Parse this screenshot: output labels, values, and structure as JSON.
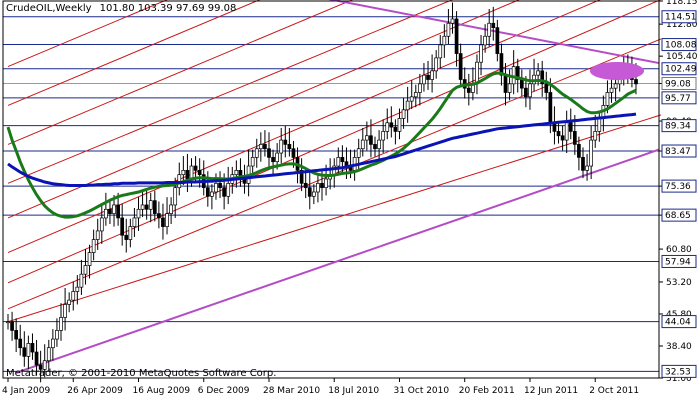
{
  "chart_data": {
    "type": "candlestick",
    "title": "CrudeOIL,Weekly",
    "ohlc_header": "101.80 103.39 97.69 99.08",
    "copyright": "Metatrader, © 2001-2010 MetaQuotes Software Corp.",
    "y_axis": {
      "ticks": [
        "118.15",
        "112.80",
        "105.40",
        "99.08",
        "90.40",
        "83.47",
        "75.36",
        "68.65",
        "60.80",
        "53.20",
        "45.80",
        "38.40",
        "31.00"
      ],
      "tick_values": [
        118.15,
        112.8,
        105.4,
        99.08,
        90.4,
        83.47,
        75.36,
        68.65,
        60.8,
        53.2,
        45.8,
        38.4,
        31.0
      ],
      "ylim": [
        31.0,
        118.15
      ]
    },
    "price_levels": [
      {
        "label": "114.51",
        "value": 114.51,
        "highlight": true
      },
      {
        "label": "108.08",
        "value": 108.08,
        "highlight": true
      },
      {
        "label": "102.49",
        "value": 102.49,
        "highlight": true
      },
      {
        "label": "99.08",
        "value": 99.08,
        "current": true
      },
      {
        "label": "95.77",
        "value": 95.77,
        "highlight": true
      },
      {
        "label": "89.34",
        "value": 89.34,
        "highlight": true
      },
      {
        "label": "83.47",
        "value": 83.47,
        "highlight": true
      },
      {
        "label": "75.36",
        "value": 75.36,
        "highlight": false
      },
      {
        "label": "68.65",
        "value": 68.65,
        "highlight": false
      },
      {
        "label": "57.94",
        "value": 57.94,
        "highlight": true
      },
      {
        "label": "44.04",
        "value": 44.04,
        "highlight": true
      },
      {
        "label": "32.53",
        "value": 32.53,
        "highlight": true
      }
    ],
    "x_axis": {
      "labels": [
        "4 Jan 2009",
        "26 Apr 2009",
        "16 Aug 2009",
        "6 Dec 2009",
        "28 Mar 2010",
        "18 Jul 2010",
        "31 Oct 2010",
        "20 Feb 2011",
        "12 Jun 2011",
        "2 Oct 2011"
      ],
      "label_index": [
        0,
        16,
        32,
        48,
        64,
        80,
        96,
        112,
        128,
        144
      ]
    },
    "weekly_close": [
      44,
      42,
      40,
      38,
      36,
      39,
      37,
      34,
      33,
      35,
      38,
      40,
      42,
      45,
      48,
      49,
      51,
      52,
      55,
      57,
      60,
      63,
      65,
      68,
      70,
      69,
      71,
      68,
      64,
      63,
      66,
      68,
      70,
      71,
      70,
      72,
      69,
      68,
      66,
      69,
      71,
      75,
      78,
      79,
      77,
      80,
      79,
      78,
      75,
      73,
      74,
      76,
      75,
      73,
      76,
      78,
      79,
      77,
      76,
      80,
      82,
      84,
      85,
      84,
      82,
      81,
      83,
      86,
      85,
      84,
      82,
      79,
      76,
      75,
      73,
      74,
      76,
      75,
      77,
      78,
      80,
      82,
      81,
      80,
      79,
      82,
      84,
      86,
      87,
      85,
      84,
      86,
      88,
      90,
      89,
      88,
      91,
      93,
      95,
      96,
      97,
      99,
      101,
      100,
      102,
      105,
      108,
      110,
      113,
      114,
      106,
      100,
      98,
      97,
      99,
      104,
      108,
      110,
      113,
      112,
      106,
      101,
      97,
      99,
      103,
      100,
      98,
      96,
      99,
      101,
      102,
      99,
      97,
      90,
      88,
      87,
      86,
      90,
      88,
      85,
      82,
      79,
      80,
      86,
      88,
      91,
      94,
      97,
      98,
      99,
      101,
      103,
      102,
      100,
      99
    ],
    "series": [
      {
        "name": "",
        "color": "#1a7a1a",
        "type": "moving-average",
        "values": [
          89.0,
          86.0,
          83.5,
          81.0,
          78.8,
          76.8,
          75.0,
          73.4,
          72.0,
          70.8,
          69.9,
          69.2,
          68.7,
          68.4,
          68.2,
          68.2,
          68.3,
          68.5,
          68.8,
          69.2,
          69.6,
          70.1,
          70.6,
          71.1,
          71.6,
          72.1,
          72.5,
          72.9,
          73.2,
          73.4,
          73.6,
          73.8,
          74.0,
          74.3,
          74.6,
          74.9,
          75.1,
          75.3,
          75.4,
          75.5,
          75.6,
          75.8,
          76.1,
          76.4,
          76.7,
          77.0,
          77.2,
          77.3,
          77.3,
          77.2,
          77.1,
          77.1,
          77.1,
          77.0,
          77.0,
          77.1,
          77.3,
          77.5,
          77.6,
          77.8,
          78.1,
          78.5,
          78.9,
          79.3,
          79.6,
          79.8,
          80.0,
          80.2,
          80.4,
          80.5,
          80.5,
          80.3,
          79.9,
          79.4,
          78.9,
          78.4,
          78.1,
          77.9,
          77.8,
          77.8,
          77.9,
          78.1,
          78.3,
          78.4,
          78.5,
          78.7,
          79.0,
          79.4,
          79.8,
          80.2,
          80.5,
          80.9,
          81.3,
          81.8,
          82.3,
          82.8,
          83.4,
          84.1,
          84.9,
          85.8,
          86.8,
          87.8,
          88.8,
          89.8,
          90.8,
          92.0,
          93.3,
          94.7,
          96.1,
          97.5,
          98.2,
          98.5,
          98.7,
          98.8,
          98.9,
          99.2,
          99.7,
          100.2,
          100.8,
          101.3,
          101.5,
          101.4,
          101.1,
          100.8,
          100.6,
          100.4,
          100.2,
          99.9,
          99.7,
          99.7,
          99.8,
          99.7,
          99.5,
          98.9,
          98.2,
          97.4,
          96.6,
          96.0,
          95.4,
          94.7,
          94.0,
          93.2,
          92.6,
          92.3,
          92.3,
          92.5,
          92.8,
          93.2,
          93.8,
          94.5,
          95.2,
          95.9,
          96.6,
          97.1,
          97.5
        ]
      },
      {
        "name": "",
        "color": "#0a14b4",
        "type": "moving-average",
        "values": [
          80.5,
          79.8,
          79.2,
          78.6,
          78.1,
          77.6,
          77.2,
          76.9,
          76.6,
          76.3,
          76.1,
          75.9,
          75.8,
          75.7,
          75.6,
          75.5,
          75.5,
          75.5,
          75.5,
          75.5,
          75.6,
          75.6,
          75.7,
          75.7,
          75.8,
          75.8,
          75.9,
          75.9,
          76.0,
          76.0,
          76.0,
          76.0,
          76.1,
          76.1,
          76.1,
          76.1,
          76.1,
          76.1,
          76.1,
          76.2,
          76.2,
          76.2,
          76.2,
          76.2,
          76.3,
          76.3,
          76.3,
          76.4,
          76.4,
          76.5,
          76.5,
          76.6,
          76.6,
          76.7,
          76.8,
          76.9,
          77.0,
          77.1,
          77.2,
          77.3,
          77.4,
          77.5,
          77.6,
          77.7,
          77.8,
          77.9,
          78.0,
          78.1,
          78.2,
          78.3,
          78.4,
          78.5,
          78.6,
          78.7,
          78.8,
          78.9,
          79.0,
          79.1,
          79.2,
          79.3,
          79.4,
          79.5,
          79.6,
          79.8,
          80.0,
          80.2,
          80.4,
          80.6,
          80.8,
          81.0,
          81.2,
          81.4,
          81.6,
          81.8,
          82.0,
          82.2,
          82.5,
          82.8,
          83.1,
          83.4,
          83.7,
          84.0,
          84.3,
          84.6,
          84.9,
          85.2,
          85.5,
          85.8,
          86.1,
          86.4,
          86.6,
          86.8,
          87.0,
          87.2,
          87.4,
          87.6,
          87.8,
          88.0,
          88.2,
          88.4,
          88.6,
          88.7,
          88.8,
          88.9,
          89.0,
          89.1,
          89.2,
          89.3,
          89.4,
          89.5,
          89.6,
          89.7,
          89.8,
          89.9,
          90.0,
          90.1,
          90.2,
          90.3,
          90.4,
          90.5,
          90.6,
          90.7,
          90.8,
          90.9,
          91.0,
          91.1,
          91.2,
          91.3,
          91.4,
          91.5,
          91.6,
          91.7,
          91.8,
          91.9,
          92.0
        ]
      }
    ],
    "grid": false,
    "legend": "none"
  }
}
